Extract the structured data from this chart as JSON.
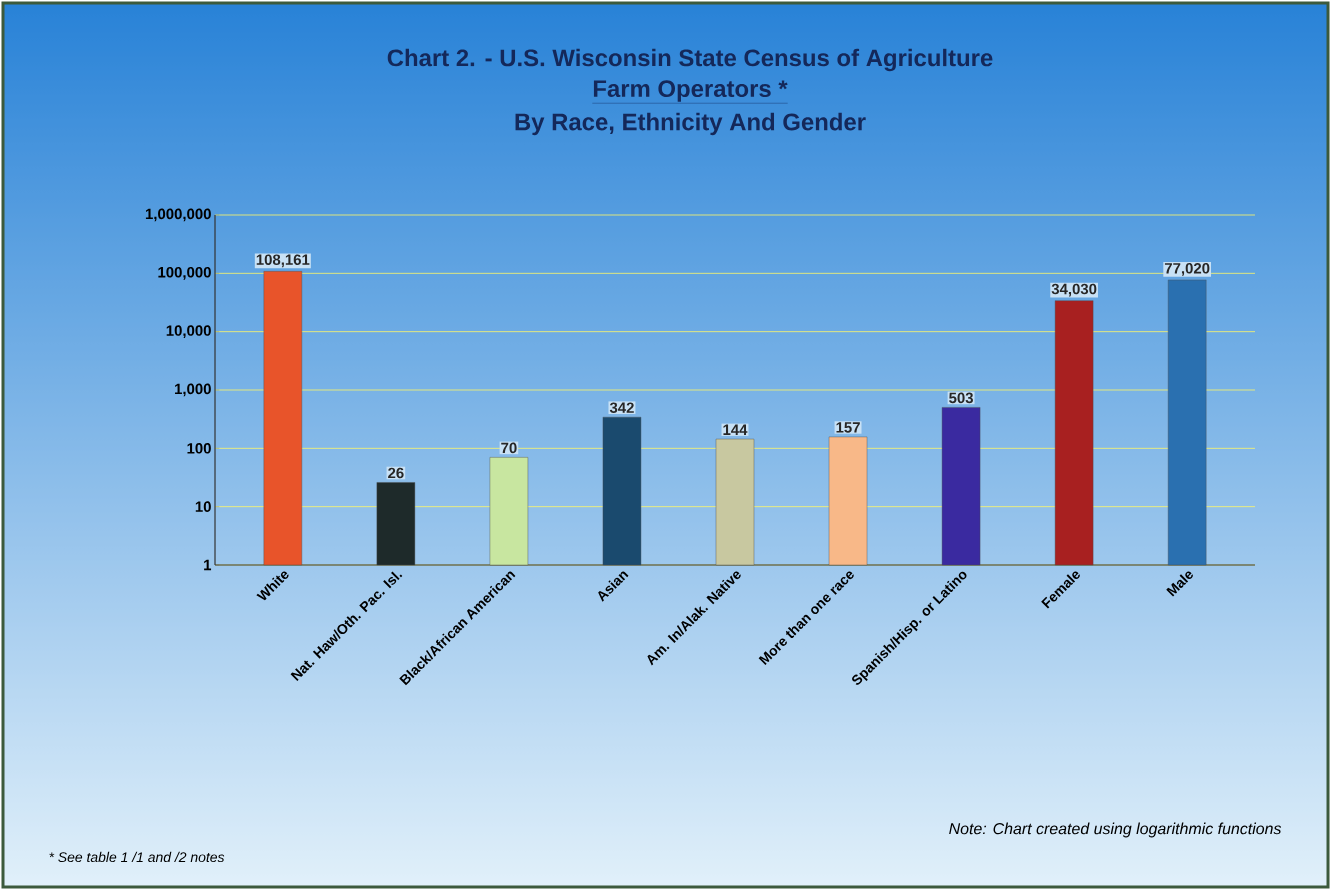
{
  "chart_data": {
    "type": "bar",
    "title": "Chart 2. - U.S. Wisconsin State Census of Agriculture",
    "subtitle": "Farm Operators *",
    "annotations": [
      "By Race, Ethnicity And Gender",
      "Note:  Chart created using logarithmic functions",
      "* See table 1  /1 and /2 notes"
    ],
    "categories": [
      "White",
      "Nat. Haw/Oth. Pac. Isl.",
      "Black/African American",
      "Asian",
      "Am. In/Alak. Native",
      "More than one race",
      "Spanish/Hisp. or Latino",
      "Female",
      "Male"
    ],
    "values": [
      108161,
      26,
      70,
      342,
      144,
      157,
      503,
      34030,
      77020
    ],
    "value_labels": [
      "108,161",
      "26",
      "70",
      "342",
      "144",
      "157",
      "503",
      "34,030",
      "77,020"
    ],
    "colors": [
      "#e8542a",
      "#1e2a2a",
      "#c8e6a0",
      "#1a4a6e",
      "#c8c8a0",
      "#f8b888",
      "#3a2aa0",
      "#a82020",
      "#2a70b0"
    ],
    "log": "y",
    "ylim": [
      1,
      1000000
    ],
    "yticks": [
      1,
      10,
      100,
      {
        "value": 1000,
        "label": "1,000"
      },
      {
        "value": 10000,
        "label": "10,000"
      },
      {
        "value": 100000,
        "label": "100,000"
      },
      {
        "value": 1000000,
        "label": "1,000,000"
      }
    ],
    "grid": "y"
  }
}
